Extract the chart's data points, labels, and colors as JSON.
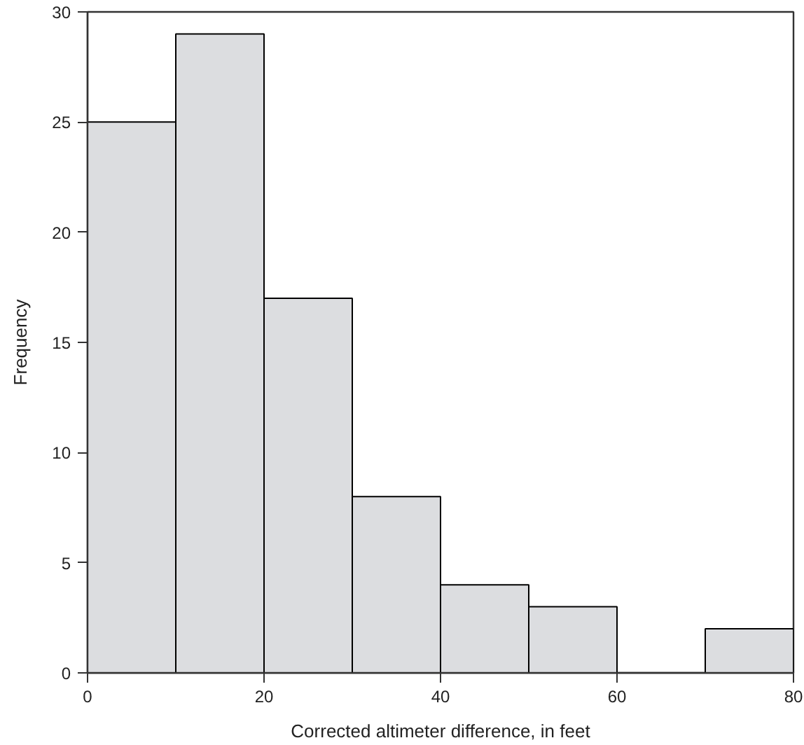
{
  "chart_data": {
    "type": "histogram",
    "xlabel": "Corrected altimeter difference, in feet",
    "ylabel": "Frequency",
    "bins": [
      0,
      10,
      20,
      30,
      40,
      50,
      60,
      70,
      80
    ],
    "values": [
      25,
      29,
      17,
      8,
      4,
      3,
      0,
      2
    ],
    "color": "#dcdde0",
    "xlim": [
      0,
      80
    ],
    "ylim": [
      0,
      30
    ],
    "xticks": [
      0,
      20,
      40,
      60,
      80
    ],
    "yticks": [
      0,
      5,
      10,
      15,
      20,
      25,
      30
    ]
  }
}
